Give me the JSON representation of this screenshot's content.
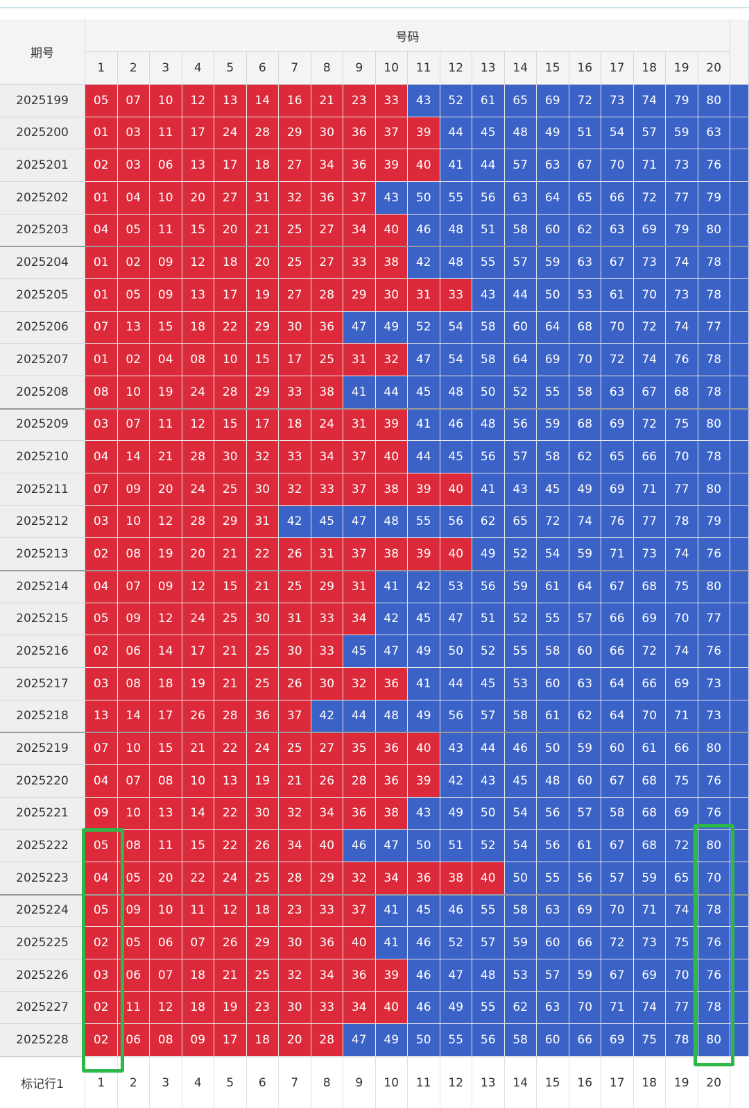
{
  "header": {
    "period_label": "期号",
    "numbers_label": "号码",
    "columns": [
      1,
      2,
      3,
      4,
      5,
      6,
      7,
      8,
      9,
      10,
      11,
      12,
      13,
      14,
      15,
      16,
      17,
      18,
      19,
      20
    ]
  },
  "colors": {
    "low": "#dc2a3a",
    "high": "#3b62c6"
  },
  "table": {
    "rows": [
      {
        "period": "2025199",
        "numbers": [
          "05",
          "07",
          "10",
          "12",
          "13",
          "14",
          "16",
          "21",
          "23",
          "33",
          "43",
          "52",
          "61",
          "65",
          "69",
          "72",
          "73",
          "74",
          "79",
          "80"
        ]
      },
      {
        "period": "2025200",
        "numbers": [
          "01",
          "03",
          "11",
          "17",
          "24",
          "28",
          "29",
          "30",
          "36",
          "37",
          "39",
          "44",
          "45",
          "48",
          "49",
          "51",
          "54",
          "57",
          "59",
          "63"
        ]
      },
      {
        "period": "2025201",
        "numbers": [
          "02",
          "03",
          "06",
          "13",
          "17",
          "18",
          "27",
          "34",
          "36",
          "39",
          "40",
          "41",
          "44",
          "57",
          "63",
          "67",
          "70",
          "71",
          "73",
          "76"
        ]
      },
      {
        "period": "2025202",
        "numbers": [
          "01",
          "04",
          "10",
          "20",
          "27",
          "31",
          "32",
          "36",
          "37",
          "43",
          "50",
          "55",
          "56",
          "63",
          "64",
          "65",
          "66",
          "72",
          "77",
          "79"
        ]
      },
      {
        "period": "2025203",
        "numbers": [
          "04",
          "05",
          "11",
          "15",
          "20",
          "21",
          "25",
          "27",
          "34",
          "40",
          "46",
          "48",
          "51",
          "58",
          "60",
          "62",
          "63",
          "69",
          "79",
          "80"
        ]
      },
      {
        "period": "2025204",
        "numbers": [
          "01",
          "02",
          "09",
          "12",
          "18",
          "20",
          "25",
          "27",
          "33",
          "38",
          "42",
          "48",
          "55",
          "57",
          "59",
          "63",
          "67",
          "73",
          "74",
          "78"
        ]
      },
      {
        "period": "2025205",
        "numbers": [
          "01",
          "05",
          "09",
          "13",
          "17",
          "19",
          "27",
          "28",
          "29",
          "30",
          "31",
          "33",
          "43",
          "44",
          "50",
          "53",
          "61",
          "70",
          "73",
          "78"
        ]
      },
      {
        "period": "2025206",
        "numbers": [
          "07",
          "13",
          "15",
          "18",
          "22",
          "29",
          "30",
          "36",
          "47",
          "49",
          "52",
          "54",
          "58",
          "60",
          "64",
          "68",
          "70",
          "72",
          "74",
          "77"
        ]
      },
      {
        "period": "2025207",
        "numbers": [
          "01",
          "02",
          "04",
          "08",
          "10",
          "15",
          "17",
          "25",
          "31",
          "32",
          "47",
          "54",
          "58",
          "64",
          "69",
          "70",
          "72",
          "74",
          "76",
          "78"
        ]
      },
      {
        "period": "2025208",
        "numbers": [
          "08",
          "10",
          "19",
          "24",
          "28",
          "29",
          "33",
          "38",
          "41",
          "44",
          "45",
          "48",
          "50",
          "52",
          "55",
          "58",
          "63",
          "67",
          "68",
          "78"
        ]
      },
      {
        "period": "2025209",
        "numbers": [
          "03",
          "07",
          "11",
          "12",
          "15",
          "17",
          "18",
          "24",
          "31",
          "39",
          "41",
          "46",
          "48",
          "56",
          "59",
          "68",
          "69",
          "72",
          "75",
          "80"
        ]
      },
      {
        "period": "2025210",
        "numbers": [
          "04",
          "14",
          "21",
          "28",
          "30",
          "32",
          "33",
          "34",
          "37",
          "40",
          "44",
          "45",
          "56",
          "57",
          "58",
          "62",
          "65",
          "66",
          "70",
          "78"
        ]
      },
      {
        "period": "2025211",
        "numbers": [
          "07",
          "09",
          "20",
          "24",
          "25",
          "30",
          "32",
          "33",
          "37",
          "38",
          "39",
          "40",
          "41",
          "43",
          "45",
          "49",
          "69",
          "71",
          "77",
          "80"
        ]
      },
      {
        "period": "2025212",
        "numbers": [
          "03",
          "10",
          "12",
          "28",
          "29",
          "31",
          "42",
          "45",
          "47",
          "48",
          "55",
          "56",
          "62",
          "65",
          "72",
          "74",
          "76",
          "77",
          "78",
          "79"
        ]
      },
      {
        "period": "2025213",
        "numbers": [
          "02",
          "08",
          "19",
          "20",
          "21",
          "22",
          "26",
          "31",
          "37",
          "38",
          "39",
          "40",
          "49",
          "52",
          "54",
          "59",
          "71",
          "73",
          "74",
          "76"
        ]
      },
      {
        "period": "2025214",
        "numbers": [
          "04",
          "07",
          "09",
          "12",
          "15",
          "21",
          "25",
          "29",
          "31",
          "41",
          "42",
          "53",
          "56",
          "59",
          "61",
          "64",
          "67",
          "68",
          "75",
          "80"
        ]
      },
      {
        "period": "2025215",
        "numbers": [
          "05",
          "09",
          "12",
          "24",
          "25",
          "30",
          "31",
          "33",
          "34",
          "42",
          "45",
          "47",
          "51",
          "52",
          "55",
          "57",
          "66",
          "69",
          "70",
          "77"
        ]
      },
      {
        "period": "2025216",
        "numbers": [
          "02",
          "06",
          "14",
          "17",
          "21",
          "25",
          "30",
          "33",
          "45",
          "47",
          "49",
          "50",
          "52",
          "55",
          "58",
          "60",
          "66",
          "72",
          "74",
          "76"
        ]
      },
      {
        "period": "2025217",
        "numbers": [
          "03",
          "08",
          "18",
          "19",
          "21",
          "25",
          "26",
          "30",
          "32",
          "36",
          "41",
          "44",
          "45",
          "53",
          "60",
          "63",
          "64",
          "66",
          "69",
          "73"
        ]
      },
      {
        "period": "2025218",
        "numbers": [
          "13",
          "14",
          "17",
          "26",
          "28",
          "36",
          "37",
          "42",
          "44",
          "48",
          "49",
          "56",
          "57",
          "58",
          "61",
          "62",
          "64",
          "70",
          "71",
          "73"
        ]
      },
      {
        "period": "2025219",
        "numbers": [
          "07",
          "10",
          "15",
          "21",
          "22",
          "24",
          "25",
          "27",
          "35",
          "36",
          "40",
          "43",
          "44",
          "46",
          "50",
          "59",
          "60",
          "61",
          "66",
          "80"
        ]
      },
      {
        "period": "2025220",
        "numbers": [
          "04",
          "07",
          "08",
          "10",
          "13",
          "19",
          "21",
          "26",
          "28",
          "36",
          "39",
          "42",
          "43",
          "45",
          "48",
          "60",
          "67",
          "68",
          "75",
          "76"
        ]
      },
      {
        "period": "2025221",
        "numbers": [
          "09",
          "10",
          "13",
          "14",
          "22",
          "30",
          "32",
          "34",
          "36",
          "38",
          "43",
          "49",
          "50",
          "54",
          "56",
          "57",
          "58",
          "68",
          "69",
          "76"
        ]
      },
      {
        "period": "2025222",
        "numbers": [
          "05",
          "08",
          "11",
          "15",
          "22",
          "26",
          "34",
          "40",
          "46",
          "47",
          "50",
          "51",
          "52",
          "54",
          "56",
          "61",
          "67",
          "68",
          "72",
          "80"
        ]
      },
      {
        "period": "2025223",
        "numbers": [
          "04",
          "05",
          "20",
          "22",
          "24",
          "25",
          "28",
          "29",
          "32",
          "34",
          "36",
          "38",
          "40",
          "50",
          "55",
          "56",
          "57",
          "59",
          "65",
          "70"
        ]
      },
      {
        "period": "2025224",
        "numbers": [
          "05",
          "09",
          "10",
          "11",
          "12",
          "18",
          "23",
          "33",
          "37",
          "41",
          "45",
          "46",
          "55",
          "58",
          "63",
          "69",
          "70",
          "71",
          "74",
          "78"
        ]
      },
      {
        "period": "2025225",
        "numbers": [
          "02",
          "05",
          "06",
          "07",
          "26",
          "29",
          "30",
          "36",
          "40",
          "41",
          "46",
          "52",
          "57",
          "59",
          "60",
          "66",
          "72",
          "73",
          "75",
          "76"
        ]
      },
      {
        "period": "2025226",
        "numbers": [
          "03",
          "06",
          "07",
          "18",
          "21",
          "25",
          "32",
          "34",
          "36",
          "39",
          "46",
          "47",
          "48",
          "53",
          "57",
          "59",
          "67",
          "69",
          "70",
          "76"
        ]
      },
      {
        "period": "2025227",
        "numbers": [
          "02",
          "11",
          "12",
          "18",
          "19",
          "23",
          "30",
          "33",
          "34",
          "40",
          "46",
          "49",
          "55",
          "62",
          "63",
          "70",
          "71",
          "74",
          "77",
          "78"
        ]
      },
      {
        "period": "2025228",
        "numbers": [
          "02",
          "06",
          "08",
          "09",
          "17",
          "18",
          "20",
          "28",
          "47",
          "49",
          "50",
          "55",
          "56",
          "58",
          "60",
          "66",
          "69",
          "75",
          "78",
          "80"
        ]
      }
    ]
  },
  "footer": {
    "label": "标记行1",
    "cells": [
      1,
      2,
      3,
      4,
      5,
      6,
      7,
      8,
      9,
      10,
      11,
      12,
      13,
      14,
      15,
      16,
      17,
      18,
      19,
      20
    ]
  }
}
